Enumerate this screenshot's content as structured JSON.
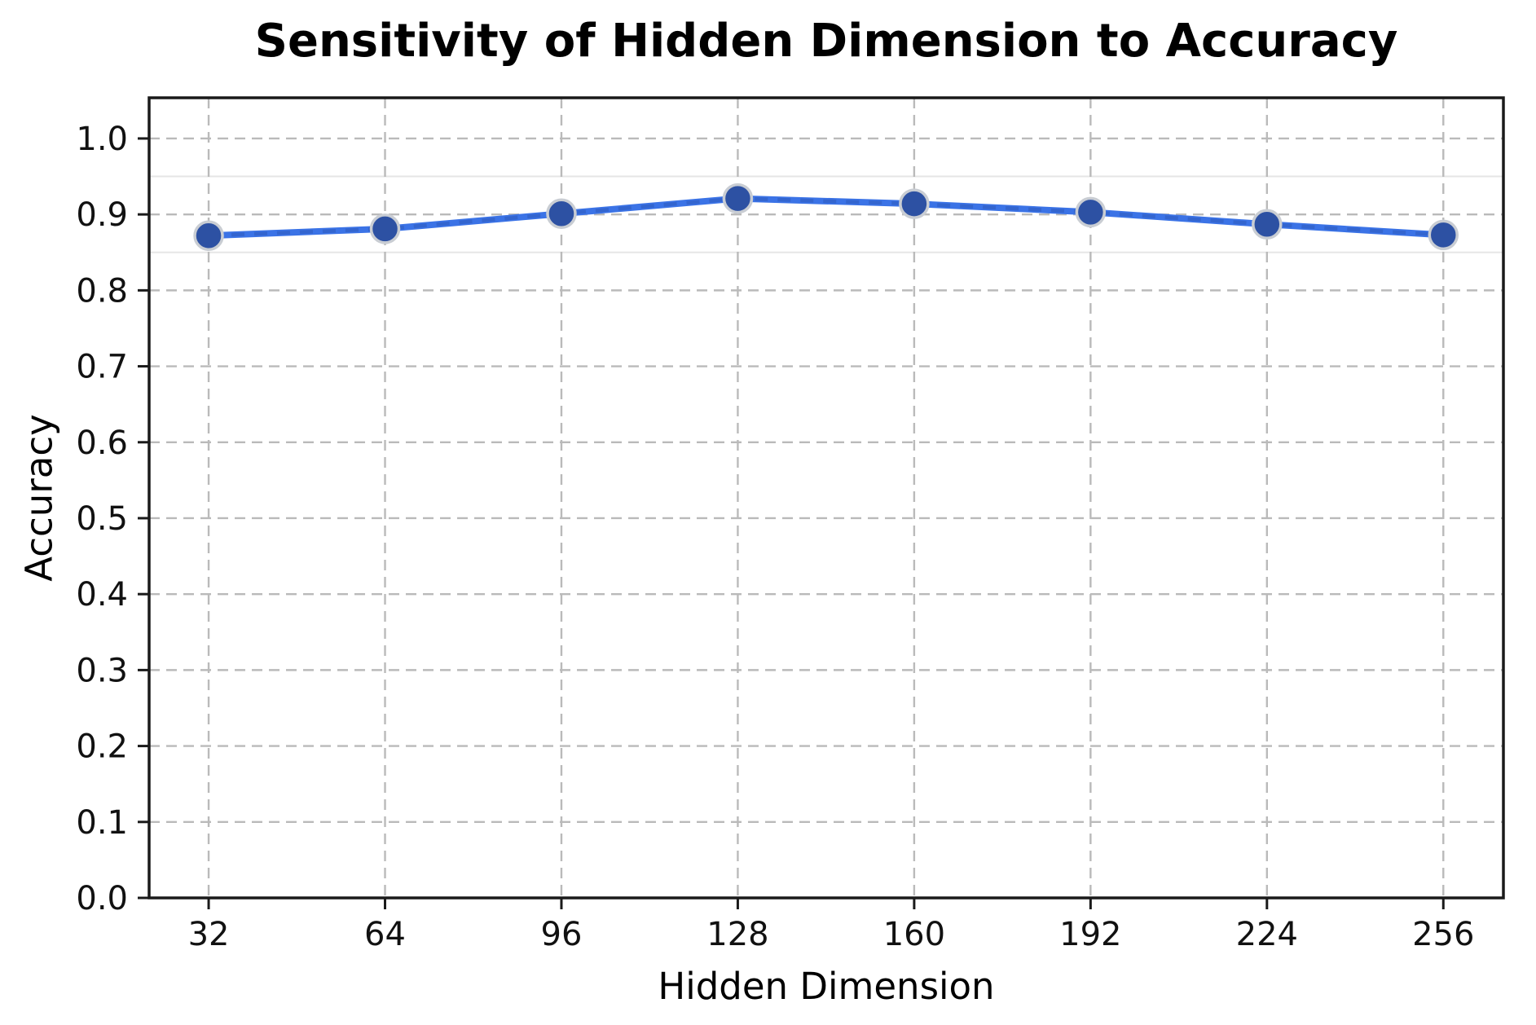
{
  "chart_data": {
    "type": "line",
    "title": "Sensitivity of Hidden Dimension to Accuracy",
    "xlabel": "Hidden Dimension",
    "ylabel": "Accuracy",
    "x": [
      32,
      64,
      96,
      128,
      160,
      192,
      224,
      256
    ],
    "series": [
      {
        "name": "accuracy",
        "values": [
          0.872,
          0.881,
          0.901,
          0.921,
          0.914,
          0.903,
          0.887,
          0.873
        ]
      }
    ],
    "x_tick_labels": [
      "32",
      "64",
      "96",
      "128",
      "160",
      "192",
      "224",
      "256"
    ],
    "y_ticks": [
      0.0,
      0.1,
      0.2,
      0.3,
      0.4,
      0.5,
      0.6,
      0.7,
      0.8,
      0.9,
      1.0
    ],
    "y_tick_labels": [
      "0.0",
      "0.1",
      "0.2",
      "0.3",
      "0.4",
      "0.5",
      "0.6",
      "0.7",
      "0.8",
      "0.9",
      "1.0"
    ],
    "xlim": [
      21.2,
      266.9
    ],
    "ylim": [
      0.0,
      1.0536
    ],
    "grid": {
      "major_style": "dashed",
      "extra_solid_lines_y": [
        0.85,
        0.95
      ]
    },
    "legend": "none",
    "style": {
      "dashed_overlay_on_line": true
    },
    "colors": {
      "line": "#3b73e6",
      "line_dash_overlay": "#2b57b8",
      "marker_fill": "#2d51a3",
      "marker_edge": "#c9cdd3",
      "grid_major": "#bababa",
      "grid_light": "#e6e6e6",
      "spine": "#1a1a1a",
      "tick_text": "#111111"
    }
  }
}
